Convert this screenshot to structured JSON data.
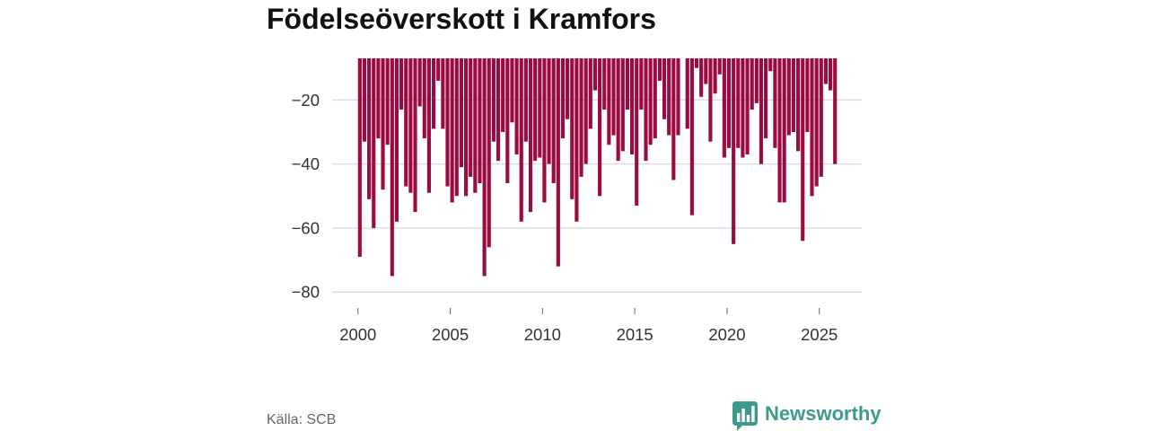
{
  "chart_data": {
    "type": "bar",
    "title": "Födelseöverskott i Kramfors",
    "x_start": 2000,
    "x_step": 0.25,
    "xlim": [
      1998.6,
      2027.3
    ],
    "ylim": [
      -84,
      -7
    ],
    "grid": true,
    "x_ticks": [
      2000,
      2005,
      2010,
      2015,
      2020,
      2025
    ],
    "x_tick_labels": [
      "2000",
      "2005",
      "2010",
      "2015",
      "2020",
      "2025"
    ],
    "y_ticks": [
      -20,
      -40,
      -60,
      -80
    ],
    "y_tick_labels": [
      "−20",
      "−40",
      "−60",
      "−80"
    ],
    "values": [
      -69,
      -33,
      -51,
      -60,
      -32,
      -48,
      -34,
      -75,
      -58,
      -23,
      -47,
      -49,
      -55,
      -22,
      -32,
      -49,
      -29,
      -14,
      -29,
      -47,
      -52,
      -50,
      -41,
      -50,
      -44,
      -49,
      -46,
      -75,
      -66,
      -33,
      -39,
      -30,
      -46,
      -27,
      -37,
      -58,
      -33,
      -55,
      -39,
      -38,
      -52,
      -40,
      -46,
      -72,
      -32,
      -26,
      -51,
      -58,
      -44,
      -40,
      -29,
      -17,
      -50,
      -23,
      -34,
      -31,
      -39,
      -36,
      -23,
      -37,
      -53,
      -23,
      -39,
      -34,
      -32,
      -14,
      -26,
      -31,
      -45,
      -31,
      null,
      -29,
      -56,
      -10,
      -19,
      -15,
      -33,
      -18,
      -12,
      -38,
      -35,
      -65,
      -35,
      -38,
      -37,
      -23,
      -21,
      -40,
      -32,
      -11,
      -35,
      -52,
      -52,
      -31,
      -30,
      -36,
      -64,
      -30,
      -50,
      -47,
      -44,
      -15,
      -17,
      -40
    ],
    "colors": {
      "bar": "#9b0b41",
      "grid": "#dddddd",
      "tick": "#666666"
    }
  },
  "footer": {
    "source": "Källa: SCB",
    "brand": "Newsworthy",
    "brand_icon": "newsworthy-logo-icon",
    "brand_color": "#3f9a8e"
  }
}
